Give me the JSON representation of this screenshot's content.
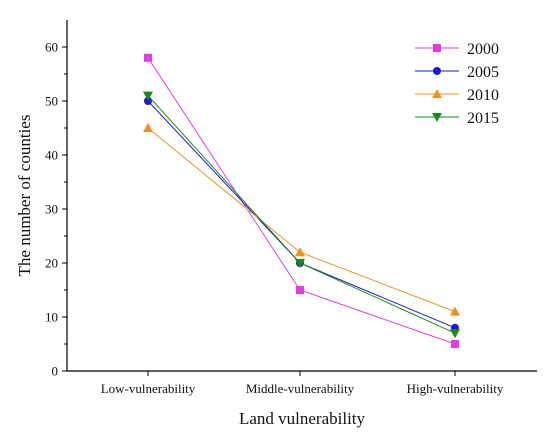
{
  "chart_data": {
    "type": "line",
    "categories": [
      "Low-vulnerability",
      "Middle-vulnerability",
      "High-vulnerability"
    ],
    "series": [
      {
        "name": "2000",
        "values": [
          58,
          15,
          5
        ],
        "color": "#e23de2",
        "marker": "square"
      },
      {
        "name": "2005",
        "values": [
          50,
          20,
          8
        ],
        "color": "#1a1ad6",
        "marker": "circle"
      },
      {
        "name": "2010",
        "values": [
          45,
          22,
          11
        ],
        "color": "#f0901e",
        "marker": "triangle-up"
      },
      {
        "name": "2015",
        "values": [
          51,
          20,
          7
        ],
        "color": "#1a8a1a",
        "marker": "triangle-down"
      }
    ],
    "xlabel": "Land vulnerability",
    "ylabel": "The number of counties",
    "ylim": [
      0,
      65
    ],
    "yticks": [
      0,
      10,
      20,
      30,
      40,
      50,
      60
    ],
    "grid": false,
    "legend_position": "top-right"
  }
}
